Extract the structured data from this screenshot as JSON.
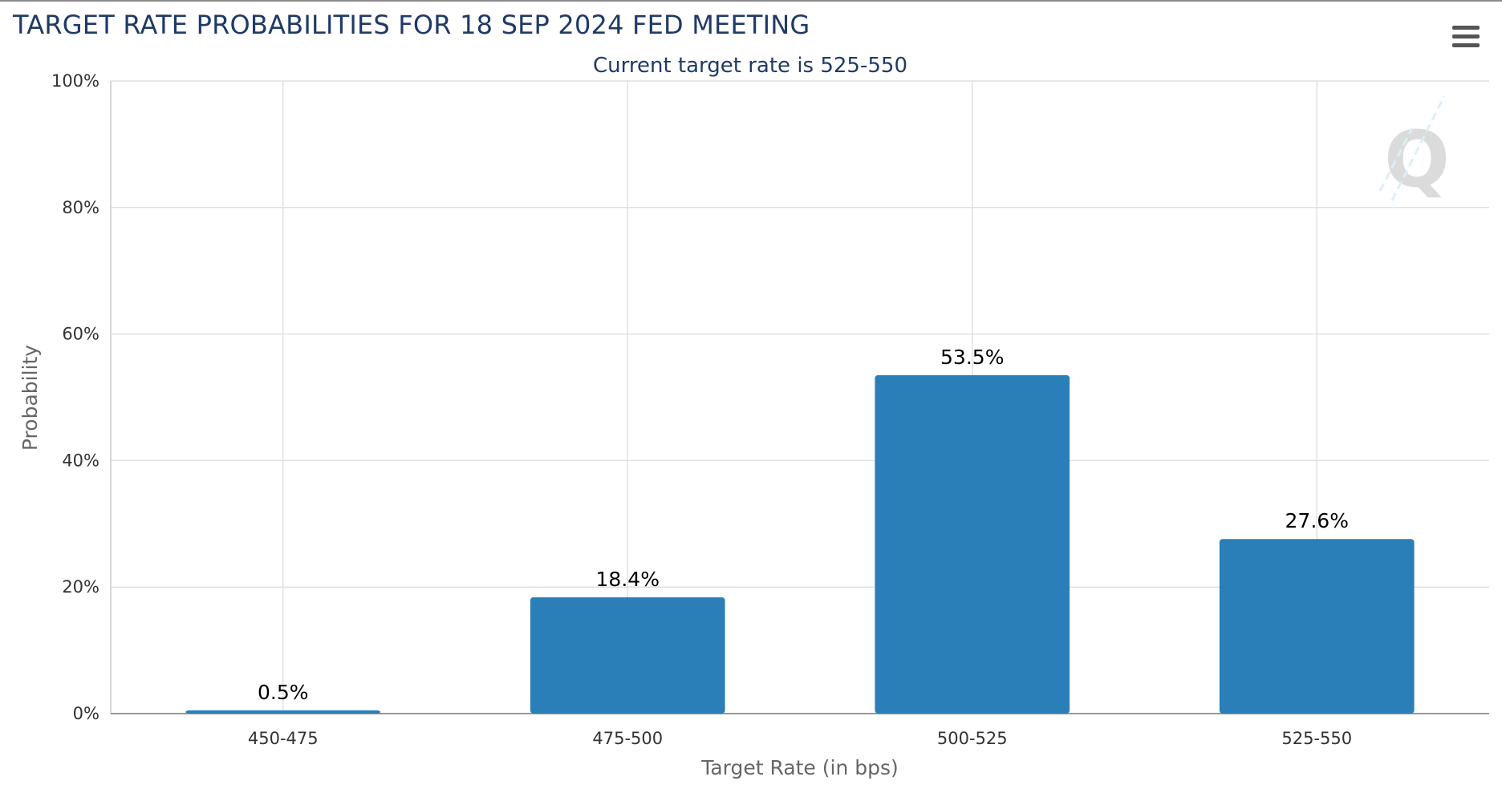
{
  "page": {
    "title": "TARGET RATE PROBABILITIES FOR 18 SEP 2024 FED MEETING",
    "menu_icon": "hamburger-menu-icon",
    "watermark_icon": "q-logo-icon"
  },
  "chart_data": {
    "type": "bar",
    "title": "TARGET RATE PROBABILITIES FOR 18 SEP 2024 FED MEETING",
    "subtitle": "Current target rate is 525-550",
    "xlabel": "Target Rate (in bps)",
    "ylabel": "Probability",
    "categories": [
      "450-475",
      "475-500",
      "500-525",
      "525-550"
    ],
    "values": [
      0.5,
      18.4,
      53.5,
      27.6
    ],
    "value_labels": [
      "0.5%",
      "18.4%",
      "53.5%",
      "27.6%"
    ],
    "ylim": [
      0,
      100
    ],
    "yticks": [
      0,
      20,
      40,
      60,
      80,
      100
    ],
    "ytick_labels": [
      "0%",
      "20%",
      "40%",
      "60%",
      "80%",
      "100%"
    ],
    "grid": true,
    "bar_color": "#2a7fb8"
  }
}
